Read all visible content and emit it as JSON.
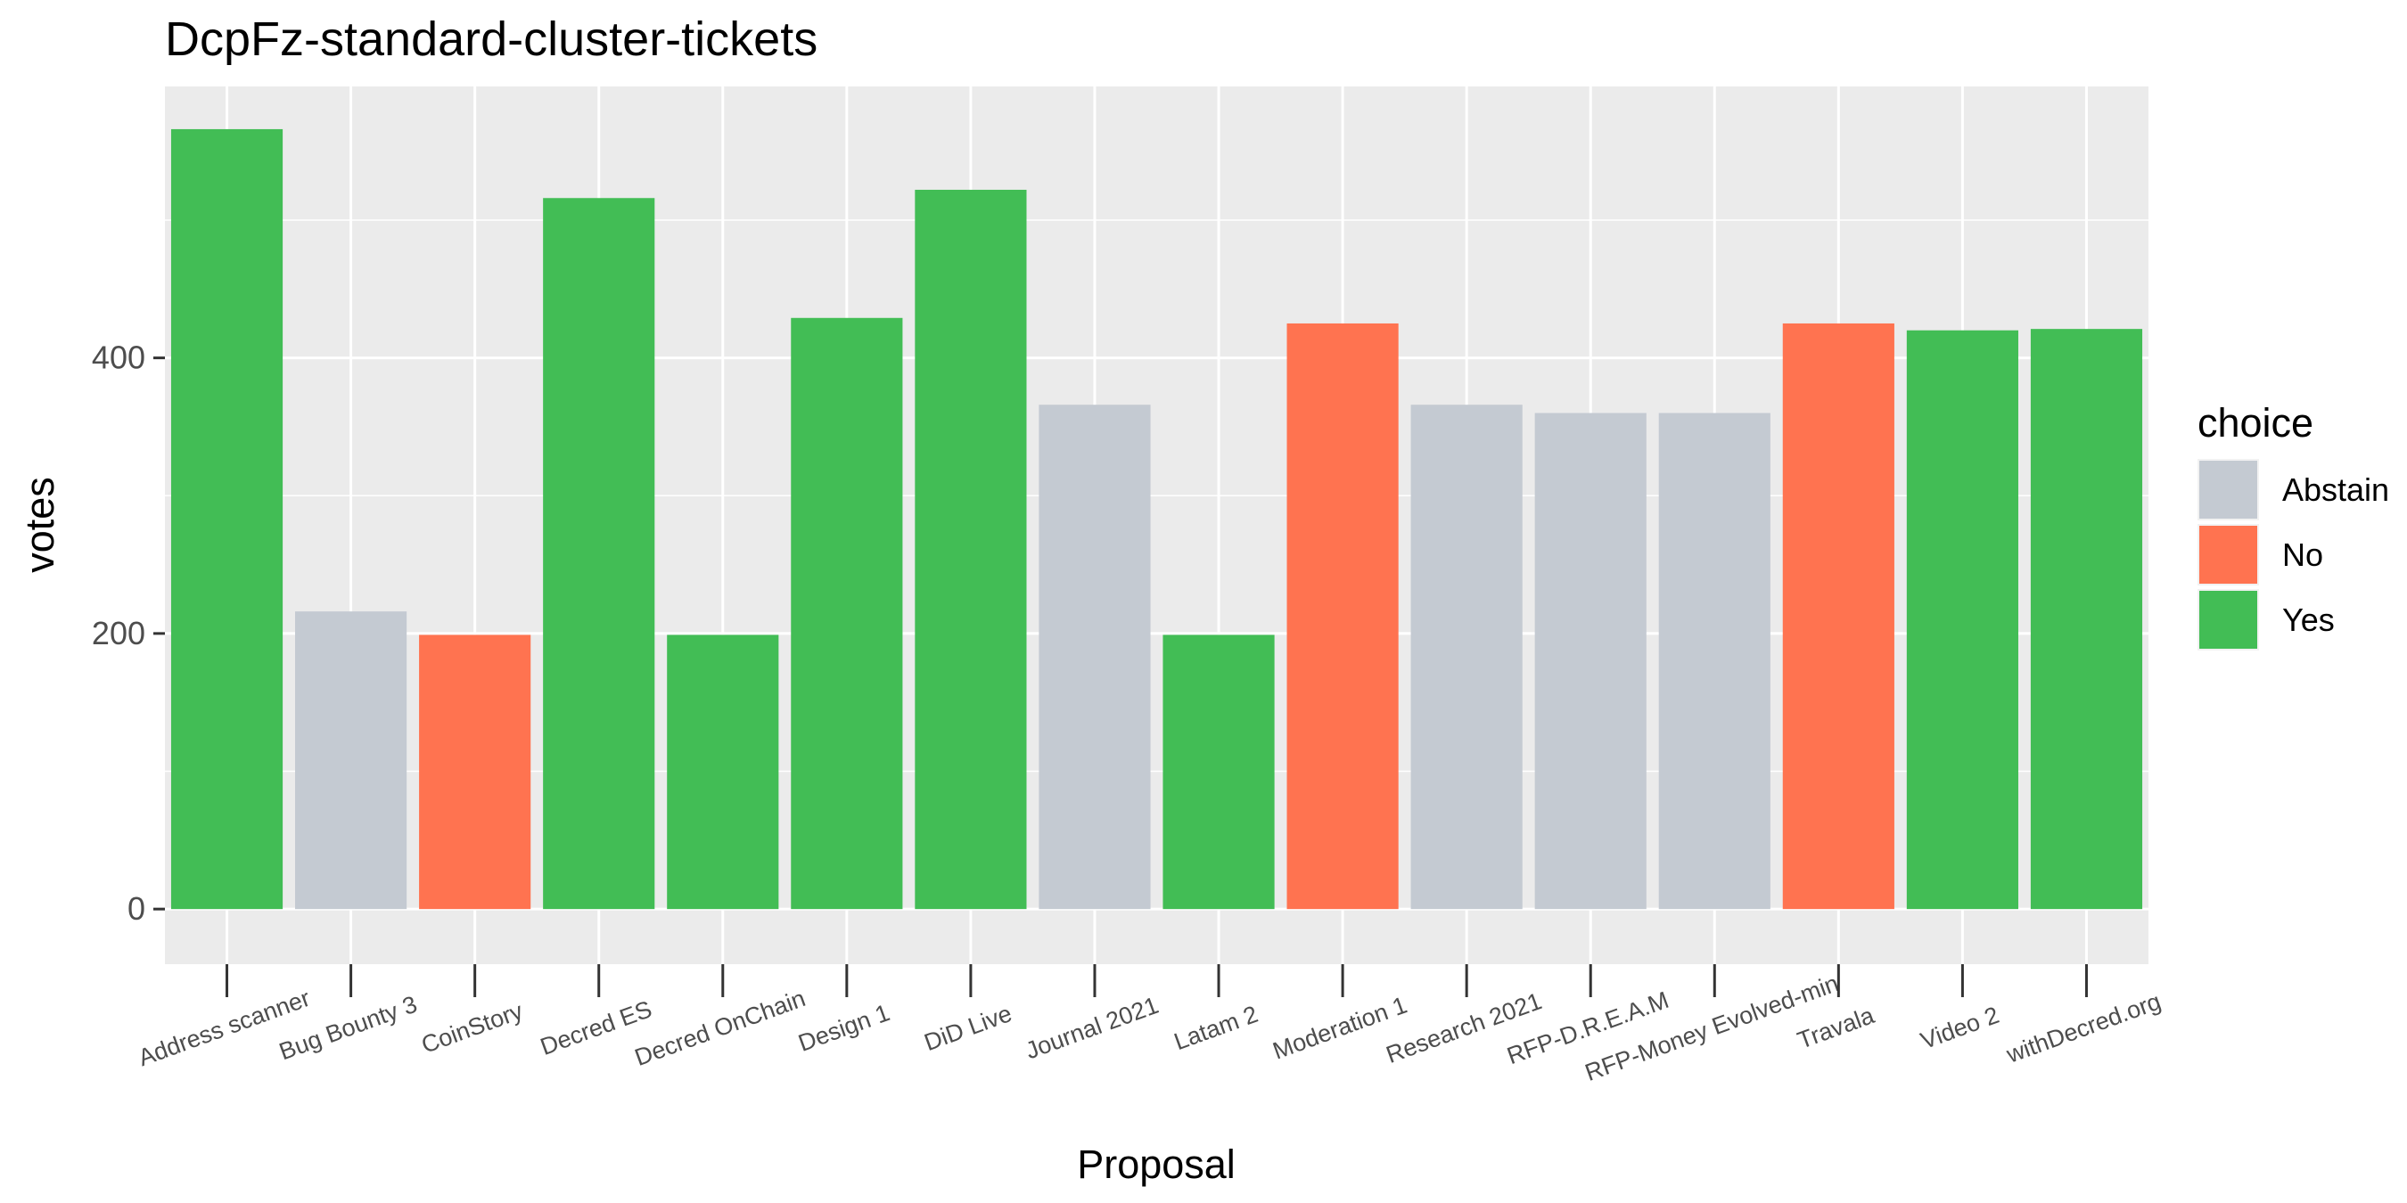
{
  "chart_data": {
    "type": "bar",
    "title": "DcpFz-standard-cluster-tickets",
    "xlabel": "Proposal",
    "ylabel": "votes",
    "ylim": [
      -40,
      597
    ],
    "y_ticks": [
      0,
      200,
      400
    ],
    "grid": true,
    "legend_position": "right",
    "legend_title": "choice",
    "colors": {
      "Abstain": "#c4cad2",
      "No": "#ff7350",
      "Yes": "#42bd55"
    },
    "legend_items": [
      "Abstain",
      "No",
      "Yes"
    ],
    "categories": [
      "Address scanner",
      "Bug Bounty 3",
      "CoinStory",
      "Decred ES",
      "Decred OnChain",
      "Design 1",
      "DiD Live",
      "Journal 2021",
      "Latam 2",
      "Moderation 1",
      "Research 2021",
      "RFP-D.R.E.A.M",
      "RFP-Money Evolved-min",
      "Travala",
      "Video 2",
      "withDecred.org"
    ],
    "values": [
      566,
      216,
      199,
      516,
      199,
      429,
      522,
      366,
      199,
      425,
      366,
      360,
      360,
      425,
      420,
      421
    ],
    "choice": [
      "Yes",
      "Abstain",
      "No",
      "Yes",
      "Yes",
      "Yes",
      "Yes",
      "Abstain",
      "Yes",
      "No",
      "Abstain",
      "Abstain",
      "Abstain",
      "No",
      "Yes",
      "Yes"
    ]
  }
}
